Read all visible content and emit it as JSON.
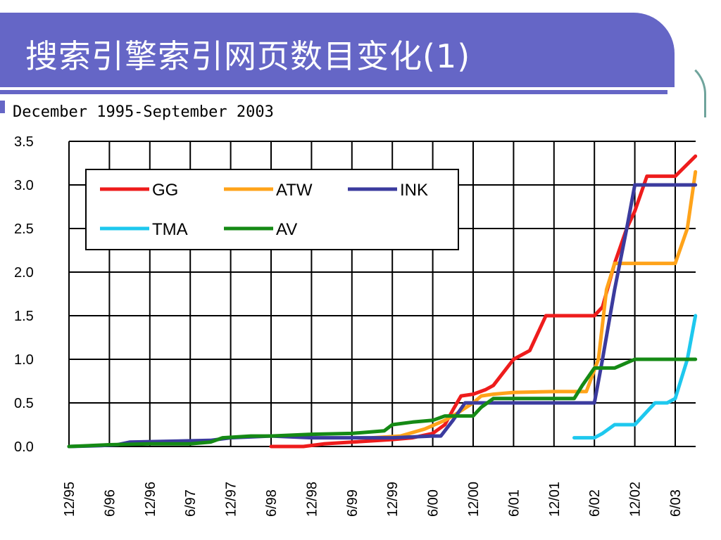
{
  "slide": {
    "title": "搜索引擎索引网页数目变化(1)"
  },
  "colors": {
    "banner": "#6566c6",
    "GG": "#ee1c1c",
    "ATW": "#ffa31a",
    "INK": "#3b3b9e",
    "TMA": "#1ec8ee",
    "AV": "#158a15"
  },
  "chart_data": {
    "type": "line",
    "title": "December 1995-September 2003",
    "xlabel": "",
    "ylabel": "",
    "ylim": [
      0,
      3.5
    ],
    "yticks": [
      "0.0",
      "0.5",
      "1.0",
      "1.5",
      "2.0",
      "2.5",
      "3.0",
      "3.5"
    ],
    "x_tick_labels": [
      "12/95",
      "6/96",
      "12/96",
      "6/97",
      "12/97",
      "6/98",
      "12/98",
      "6/99",
      "12/99",
      "6/00",
      "12/00",
      "6/01",
      "12/01",
      "6/02",
      "12/02",
      "6/03"
    ],
    "xlim": [
      0,
      15.5
    ],
    "grid": true,
    "legend_position": "top-left",
    "series": [
      {
        "name": "GG",
        "points": [
          [
            5,
            0.0
          ],
          [
            5.8,
            0.0
          ],
          [
            6.3,
            0.03
          ],
          [
            7.0,
            0.05
          ],
          [
            8.0,
            0.08
          ],
          [
            8.5,
            0.1
          ],
          [
            9.0,
            0.15
          ],
          [
            9.3,
            0.25
          ],
          [
            9.5,
            0.42
          ],
          [
            9.7,
            0.58
          ],
          [
            10.0,
            0.6
          ],
          [
            10.3,
            0.65
          ],
          [
            10.5,
            0.7
          ],
          [
            11.0,
            1.0
          ],
          [
            11.4,
            1.1
          ],
          [
            11.8,
            1.5
          ],
          [
            12.5,
            1.5
          ],
          [
            13.0,
            1.5
          ],
          [
            13.2,
            1.6
          ],
          [
            13.5,
            2.1
          ],
          [
            13.8,
            2.5
          ],
          [
            14.0,
            2.7
          ],
          [
            14.3,
            3.1
          ],
          [
            15.0,
            3.1
          ],
          [
            15.5,
            3.33
          ]
        ]
      },
      {
        "name": "ATW",
        "points": [
          [
            7.5,
            0.1
          ],
          [
            8.2,
            0.12
          ],
          [
            8.8,
            0.2
          ],
          [
            9.3,
            0.3
          ],
          [
            9.6,
            0.38
          ],
          [
            10.0,
            0.5
          ],
          [
            10.2,
            0.58
          ],
          [
            10.5,
            0.6
          ],
          [
            11.0,
            0.62
          ],
          [
            12.0,
            0.63
          ],
          [
            12.8,
            0.63
          ],
          [
            13.1,
            1.0
          ],
          [
            13.3,
            1.8
          ],
          [
            13.5,
            2.1
          ],
          [
            14.0,
            2.1
          ],
          [
            15.0,
            2.1
          ],
          [
            15.3,
            2.5
          ],
          [
            15.5,
            3.15
          ]
        ]
      },
      {
        "name": "INK",
        "points": [
          [
            0,
            0.0
          ],
          [
            0.8,
            0.01
          ],
          [
            1.2,
            0.02
          ],
          [
            1.5,
            0.05
          ],
          [
            3.5,
            0.07
          ],
          [
            4.0,
            0.1
          ],
          [
            5.0,
            0.12
          ],
          [
            6.0,
            0.1
          ],
          [
            7.0,
            0.1
          ],
          [
            8.0,
            0.1
          ],
          [
            9.0,
            0.12
          ],
          [
            9.2,
            0.12
          ],
          [
            9.5,
            0.3
          ],
          [
            9.8,
            0.5
          ],
          [
            10.0,
            0.5
          ],
          [
            11.0,
            0.5
          ],
          [
            12.0,
            0.5
          ],
          [
            13.0,
            0.5
          ],
          [
            13.2,
            1.0
          ],
          [
            13.5,
            1.8
          ],
          [
            13.8,
            2.5
          ],
          [
            14.0,
            3.0
          ],
          [
            14.5,
            3.0
          ],
          [
            15.5,
            3.0
          ]
        ]
      },
      {
        "name": "TMA",
        "points": [
          [
            12.5,
            0.1
          ],
          [
            13.0,
            0.1
          ],
          [
            13.2,
            0.15
          ],
          [
            13.5,
            0.25
          ],
          [
            14.0,
            0.25
          ],
          [
            14.5,
            0.5
          ],
          [
            14.8,
            0.5
          ],
          [
            15.0,
            0.55
          ],
          [
            15.3,
            1.0
          ],
          [
            15.5,
            1.5
          ]
        ]
      },
      {
        "name": "AV",
        "points": [
          [
            0,
            0.0
          ],
          [
            1.0,
            0.02
          ],
          [
            2.0,
            0.03
          ],
          [
            3.0,
            0.03
          ],
          [
            3.5,
            0.05
          ],
          [
            3.8,
            0.1
          ],
          [
            4.5,
            0.12
          ],
          [
            5.0,
            0.12
          ],
          [
            6.0,
            0.14
          ],
          [
            7.0,
            0.15
          ],
          [
            7.8,
            0.18
          ],
          [
            8.0,
            0.25
          ],
          [
            8.5,
            0.28
          ],
          [
            9.0,
            0.3
          ],
          [
            9.3,
            0.35
          ],
          [
            10.0,
            0.35
          ],
          [
            10.2,
            0.45
          ],
          [
            10.5,
            0.55
          ],
          [
            11.0,
            0.55
          ],
          [
            12.0,
            0.55
          ],
          [
            12.5,
            0.55
          ],
          [
            12.7,
            0.7
          ],
          [
            13.0,
            0.9
          ],
          [
            13.5,
            0.9
          ],
          [
            14.0,
            1.0
          ],
          [
            15.5,
            1.0
          ]
        ]
      }
    ]
  }
}
